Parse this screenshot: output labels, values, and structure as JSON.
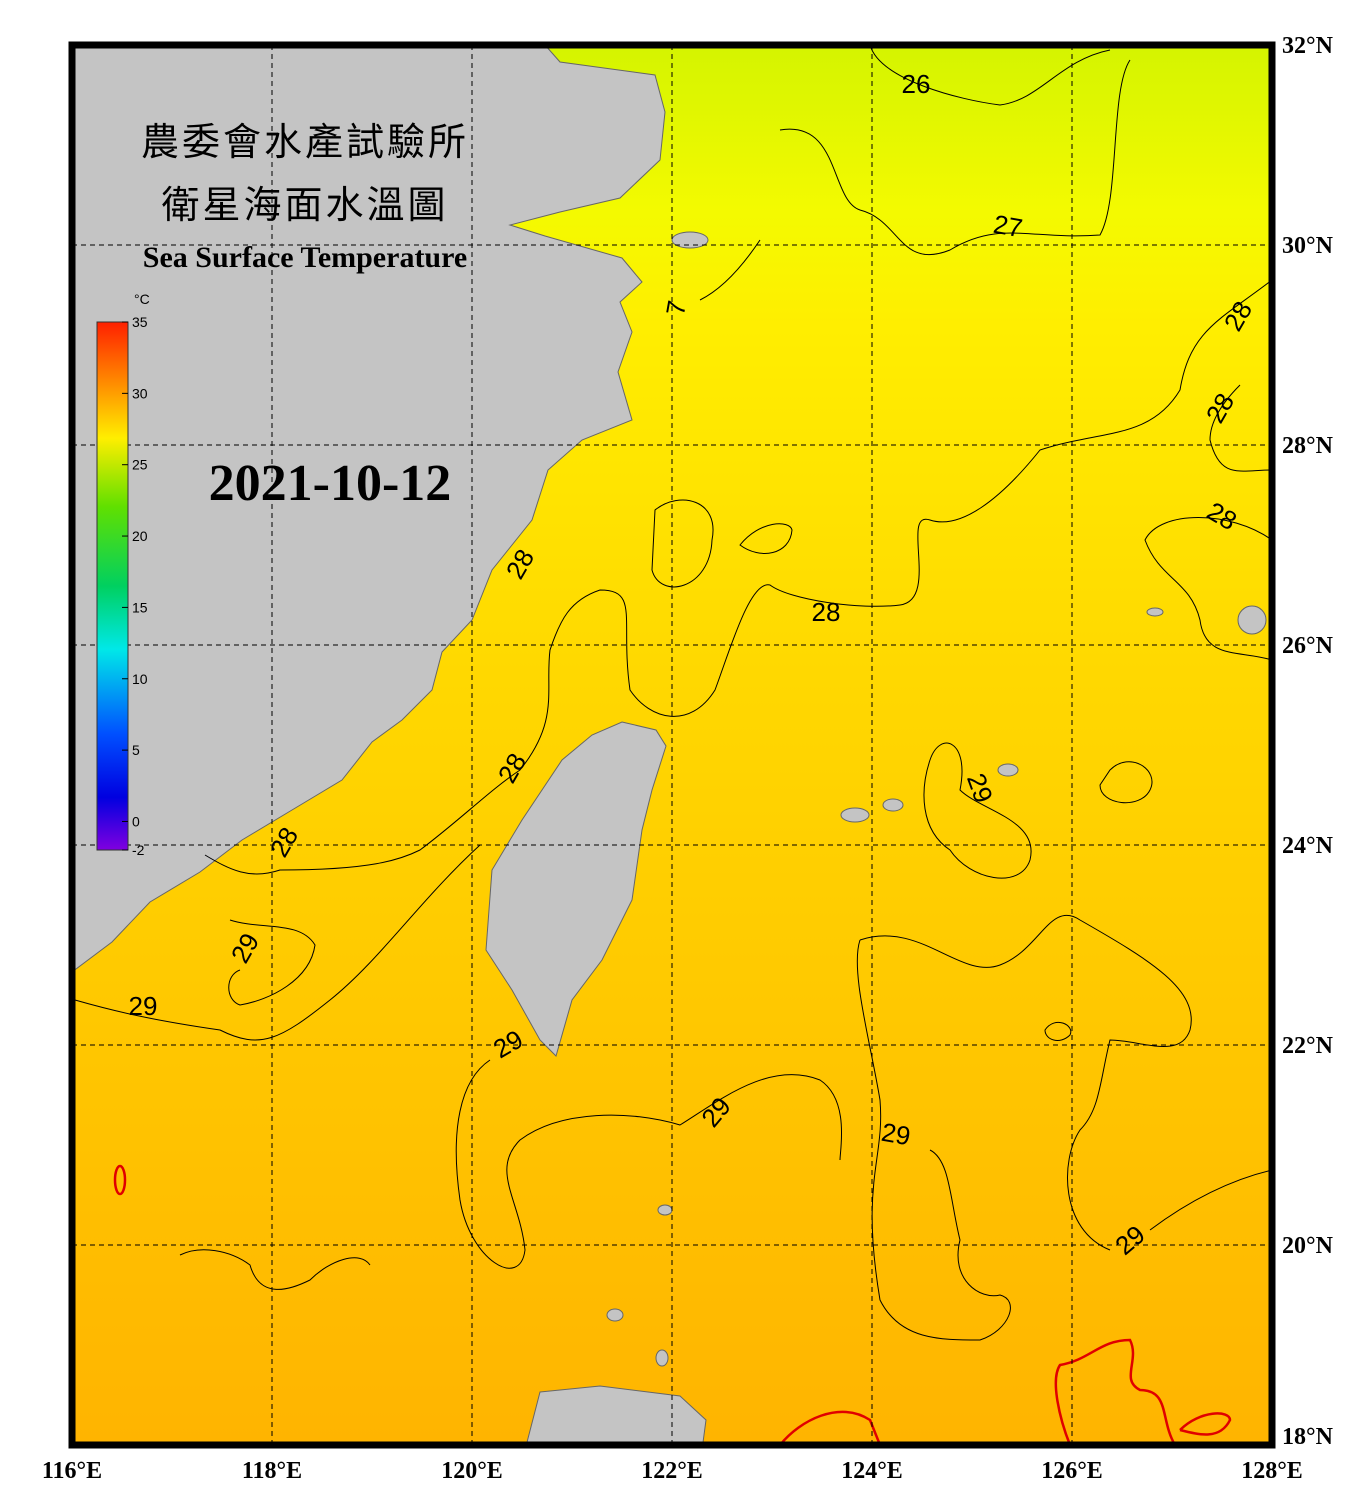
{
  "header": {
    "title_zh_1": "農委會水產試驗所",
    "title_zh_2": "衛星海面水溫圖",
    "title_en": "Sea Surface Temperature",
    "date": "2021-10-12"
  },
  "colorbar": {
    "unit": "°C",
    "ticks": [
      35,
      30,
      25,
      20,
      15,
      10,
      5,
      0,
      -2
    ]
  },
  "axes": {
    "lon_labels": [
      "116°E",
      "118°E",
      "120°E",
      "122°E",
      "124°E",
      "126°E",
      "128°E"
    ],
    "lat_labels": [
      "32°N",
      "30°N",
      "28°N",
      "26°N",
      "24°N",
      "22°N",
      "20°N",
      "18°N"
    ]
  },
  "contour_labels": [
    "26",
    "27",
    "7",
    "28",
    "28",
    "28",
    "28",
    "28",
    "28",
    "28",
    "29",
    "29",
    "29",
    "29",
    "29",
    "29",
    "29"
  ]
}
